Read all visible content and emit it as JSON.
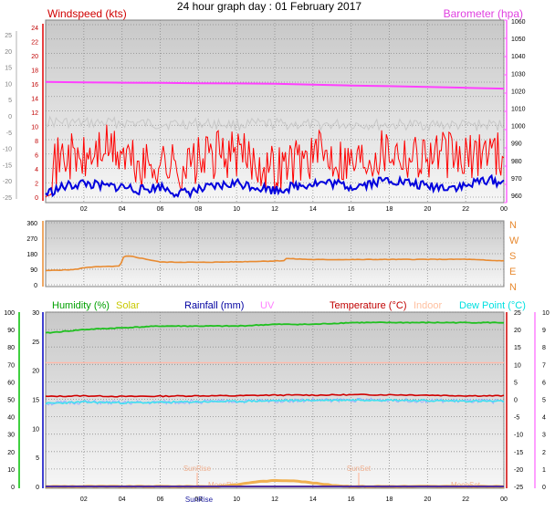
{
  "title": "24 hour graph day : 01 February 2017",
  "chart_data": [
    {
      "type": "line",
      "panel": "wind_baro",
      "title_left": "Windspeed (kts)",
      "title_right": "Barometer (hpa)",
      "x_ticks": [
        "02",
        "04",
        "06",
        "08",
        "10",
        "12",
        "14",
        "16",
        "18",
        "20",
        "22",
        "00"
      ],
      "x_range_hours": [
        0,
        24
      ],
      "axis_far_left": {
        "ticks": [
          25,
          20,
          15,
          10,
          5,
          0,
          -5,
          -10,
          -15,
          -20,
          -25
        ],
        "range": [
          -25,
          25
        ]
      },
      "axis_left": {
        "ticks": [
          0,
          2,
          4,
          6,
          8,
          10,
          12,
          14,
          16,
          18,
          20,
          22,
          24
        ],
        "range": [
          0,
          24
        ]
      },
      "axis_right": {
        "ticks": [
          960,
          970,
          980,
          990,
          1000,
          1010,
          1020,
          1030,
          1040,
          1050,
          1060
        ],
        "range": [
          960,
          1060
        ]
      },
      "series": [
        {
          "name": "Barometer",
          "color": "#ff40ff",
          "axis": "right",
          "x": [
            0,
            2,
            4,
            6,
            8,
            10,
            12,
            14,
            16,
            18,
            20,
            22,
            24
          ],
          "values": [
            1025,
            1024.8,
            1024.6,
            1024.5,
            1024.3,
            1024.2,
            1024,
            1023.5,
            1023,
            1022.6,
            1022.2,
            1021.7,
            1021.2
          ]
        },
        {
          "name": "",
          "color": "#c8c8c8",
          "axis": "far_left",
          "x": [
            0,
            2,
            4,
            6,
            8,
            10,
            12,
            14,
            16,
            18,
            20,
            22,
            24
          ],
          "values": [
            0,
            -0.5,
            -0.3,
            -0.8,
            -0.6,
            -0.9,
            -0.7,
            -1,
            -0.8,
            -1.1,
            -0.9,
            -1.2,
            -1
          ]
        },
        {
          "name": "Gust",
          "color": "#ff0000",
          "axis": "left",
          "x": [
            0,
            1,
            2,
            3,
            4,
            5,
            6,
            7,
            8,
            9,
            10,
            11,
            12,
            13,
            14,
            15,
            16,
            17,
            18,
            19,
            20,
            21,
            22,
            23,
            24
          ],
          "values": [
            2,
            5,
            4,
            6,
            5,
            3,
            4,
            3,
            4,
            5,
            5,
            4,
            3,
            4,
            5,
            5,
            4,
            5,
            6,
            5,
            5,
            5,
            4,
            6,
            5
          ]
        },
        {
          "name": "Windspeed",
          "color": "#0000dd",
          "axis": "left",
          "x": [
            0,
            1,
            2,
            3,
            4,
            5,
            6,
            7,
            8,
            9,
            10,
            11,
            12,
            13,
            14,
            15,
            16,
            17,
            18,
            19,
            20,
            21,
            22,
            23,
            24
          ],
          "values": [
            0.5,
            1.5,
            2,
            1.5,
            1.5,
            1,
            1.5,
            0.5,
            1,
            1.5,
            2,
            1.5,
            1,
            1.5,
            2,
            2,
            1.5,
            2,
            2.5,
            2,
            1.5,
            1.5,
            1.5,
            2.5,
            2
          ]
        }
      ]
    },
    {
      "type": "line",
      "panel": "wind_direction",
      "axis_left": {
        "ticks": [
          0,
          90,
          180,
          270,
          360
        ],
        "range": [
          0,
          360
        ]
      },
      "axis_right_labels": [
        "N",
        "W",
        "S",
        "E",
        "N"
      ],
      "series": [
        {
          "name": "Wind direction",
          "color": "#e88a30",
          "x": [
            0,
            1.5,
            2.2,
            3.9,
            4.1,
            4.5,
            6,
            8,
            10,
            12,
            12.5,
            12.6,
            14,
            16,
            18,
            20,
            22,
            23.5,
            24
          ],
          "values": [
            82,
            88,
            102,
            108,
            165,
            165,
            132,
            130,
            133,
            138,
            140,
            152,
            146,
            146,
            147,
            147,
            148,
            140,
            140
          ]
        }
      ]
    },
    {
      "type": "line",
      "panel": "climate",
      "legend": [
        "Humidity (%)",
        "Solar",
        "Rainfall (mm)",
        "UV",
        "Temperature (°C)",
        "Indoor",
        "Dew Point (°C)"
      ],
      "legend_colors": [
        "#00a000",
        "#c8c800",
        "#0000a0",
        "#ff80ff",
        "#c00000",
        "#ffc0a0",
        "#00e0e0"
      ],
      "axis_humidity": {
        "ticks": [
          100,
          90,
          80,
          70,
          60,
          50,
          40,
          30,
          20,
          10,
          0
        ],
        "range": [
          0,
          100
        ]
      },
      "axis_rain": {
        "ticks": [
          30,
          25,
          20,
          15,
          10,
          5,
          0
        ],
        "range": [
          0,
          30
        ]
      },
      "axis_temp": {
        "ticks": [
          25,
          20,
          15,
          10,
          5,
          0,
          -5,
          -10,
          -15,
          -20,
          -25
        ],
        "range": [
          -25,
          25
        ]
      },
      "axis_uv": {
        "ticks": [
          10,
          9,
          8,
          7,
          6,
          5,
          4,
          3,
          2,
          1,
          0
        ],
        "range": [
          0,
          10
        ]
      },
      "annotations": [
        "SunRise",
        "SunSet",
        "MoonSet",
        "MoonRise"
      ],
      "series": [
        {
          "name": "Humidity",
          "color": "#20c020",
          "axis": "humidity",
          "x": [
            0,
            1,
            2,
            4,
            6,
            8,
            10,
            12,
            14,
            16,
            18,
            20,
            22,
            24
          ],
          "values": [
            88,
            89,
            90,
            91,
            92,
            92,
            92,
            93,
            93,
            94,
            94,
            94,
            94,
            94
          ]
        },
        {
          "name": "Indoor",
          "color": "#ffb8a8",
          "axis": "temp",
          "x": [
            0,
            24
          ],
          "values": [
            10.5,
            10.5
          ]
        },
        {
          "name": "Temperature",
          "color": "#d00000",
          "axis": "temp",
          "x": [
            0,
            2,
            4,
            6,
            8,
            10,
            12,
            14,
            16,
            18,
            20,
            22,
            24
          ],
          "values": [
            0.8,
            1.0,
            0.8,
            0.9,
            1.0,
            1.0,
            1.2,
            1.2,
            1.3,
            1.3,
            1.2,
            1.0,
            1.0
          ]
        },
        {
          "name": "Dew Point",
          "color": "#40e0f0",
          "axis": "temp",
          "x": [
            0,
            2,
            4,
            6,
            8,
            10,
            12,
            14,
            16,
            18,
            20,
            22,
            24
          ],
          "values": [
            -1.2,
            -0.8,
            -1.0,
            -0.9,
            -0.7,
            -0.6,
            -0.4,
            -0.3,
            -0.2,
            -0.2,
            -0.4,
            -0.5,
            -0.6
          ]
        },
        {
          "name": "Solar",
          "color": "#f0b050",
          "axis": "rain",
          "x": [
            0,
            9,
            10,
            11,
            12,
            13,
            14,
            15,
            16,
            24
          ],
          "values": [
            0,
            0,
            0.3,
            0.8,
            1.0,
            1.0,
            0.6,
            0.2,
            0,
            0
          ]
        },
        {
          "name": "Rainfall",
          "color": "#5030a0",
          "axis": "rain",
          "x": [
            0,
            24
          ],
          "values": [
            0,
            0
          ]
        }
      ]
    }
  ]
}
